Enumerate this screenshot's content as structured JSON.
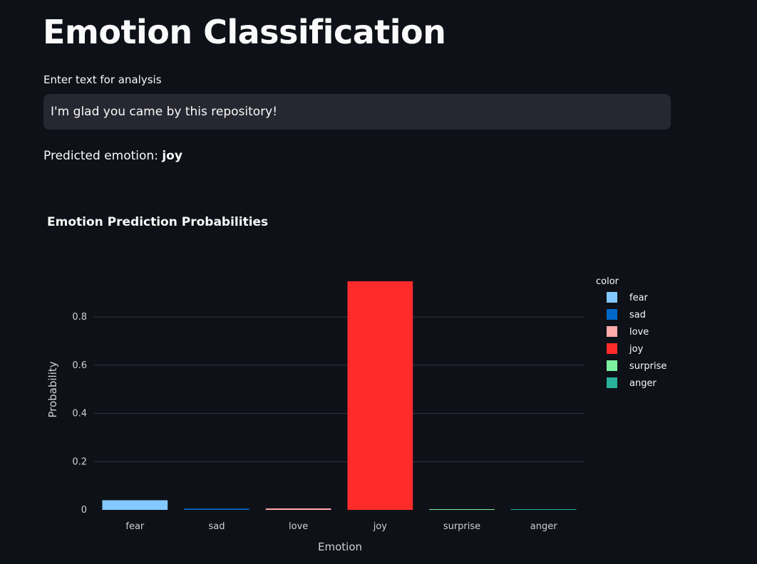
{
  "page": {
    "title": "Emotion Classification",
    "input_label": "Enter text for analysis",
    "input_value": "I'm glad you came by this repository!",
    "prediction_prefix": "Predicted emotion: ",
    "prediction_value": "joy"
  },
  "chart_data": {
    "type": "bar",
    "title": "Emotion Prediction Probabilities",
    "xlabel": "Emotion",
    "ylabel": "Probability",
    "categories": [
      "fear",
      "sad",
      "love",
      "joy",
      "surprise",
      "anger"
    ],
    "values": [
      0.04,
      0.005,
      0.006,
      0.948,
      0.003,
      0.003
    ],
    "colors": [
      "#83c9ff",
      "#0068c9",
      "#ffabab",
      "#ff2b2b",
      "#7defa1",
      "#29b09d"
    ],
    "yticks": [
      0,
      0.2,
      0.4,
      0.6,
      0.8
    ],
    "ytick_labels": [
      "0",
      "0.2",
      "0.4",
      "0.6",
      "0.8"
    ],
    "ylim": [
      0,
      0.998
    ],
    "grid": true,
    "legend": {
      "title": "color",
      "position": "right",
      "entries": [
        "fear",
        "sad",
        "love",
        "joy",
        "surprise",
        "anger"
      ]
    }
  }
}
